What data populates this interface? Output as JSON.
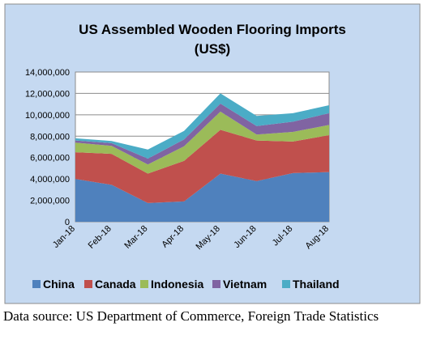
{
  "chart_data": {
    "type": "area",
    "stacked": true,
    "title": "US Assembled Wooden Flooring Imports",
    "subtitle": "(US$)",
    "xlabel": "",
    "ylabel": "",
    "categories": [
      "Jan-18",
      "Feb-18",
      "Mar-18",
      "Apr-18",
      "May-18",
      "Jun-18",
      "Jul-18",
      "Aug-18"
    ],
    "y_ticks": [
      "0",
      "2,000,000",
      "4,000,000",
      "6,000,000",
      "8,000,000",
      "10,000,000",
      "12,000,000",
      "14,000,000"
    ],
    "ylim": [
      0,
      14000000
    ],
    "grid": true,
    "legend_position": "bottom",
    "series": [
      {
        "name": "China",
        "color": "#4f81bd",
        "values": [
          4000000,
          3450000,
          1750000,
          1900000,
          4500000,
          3800000,
          4550000,
          4650000
        ]
      },
      {
        "name": "Canada",
        "color": "#c0504d",
        "values": [
          2500000,
          2900000,
          2750000,
          3800000,
          4100000,
          3800000,
          2950000,
          3450000
        ]
      },
      {
        "name": "Indonesia",
        "color": "#9bbb59",
        "values": [
          900000,
          750000,
          850000,
          1350000,
          1700000,
          550000,
          900000,
          950000
        ]
      },
      {
        "name": "Vietnam",
        "color": "#8064a2",
        "values": [
          200000,
          250000,
          550000,
          650000,
          750000,
          800000,
          950000,
          1100000
        ]
      },
      {
        "name": "Thailand",
        "color": "#4bacc6",
        "values": [
          200000,
          200000,
          850000,
          800000,
          950000,
          950000,
          800000,
          750000
        ]
      }
    ]
  },
  "footer": {
    "source": "Data source: US Department of Commerce, Foreign Trade Statistics"
  }
}
